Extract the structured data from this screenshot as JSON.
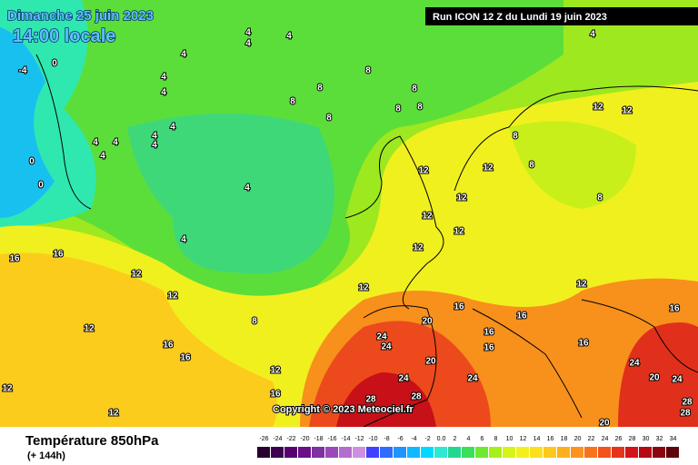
{
  "header": {
    "date": "Dimanche 25 juin 2023",
    "time": "14:00 locale",
    "run": "Run ICON 12 Z du Lundi 19 juin 2023"
  },
  "copyright": "Copyright © 2023 Meteociel.fr",
  "footer": {
    "title": "Température 850hPa",
    "lead": "(+ 144h)"
  },
  "contour_labels": [
    0,
    -4,
    0,
    0,
    4,
    4,
    4,
    4,
    4,
    4,
    4,
    4,
    4,
    4,
    4,
    4,
    4,
    4,
    4,
    8,
    8,
    8,
    8,
    8,
    8,
    8,
    8,
    8,
    8,
    8,
    12,
    12,
    12,
    12,
    12,
    12,
    12,
    12,
    12,
    12,
    12,
    12,
    12,
    12,
    12,
    12,
    16,
    16,
    16,
    16,
    16,
    16,
    16,
    16,
    16,
    16,
    16,
    20,
    20,
    20,
    20,
    24,
    24,
    24,
    24,
    24,
    24,
    28,
    28,
    28,
    28
  ],
  "legend": {
    "labels": [
      "-26",
      "-24",
      "-22",
      "-20",
      "-18",
      "-16",
      "-14",
      "-12",
      "-10",
      "-8",
      "-6",
      "-4",
      "-2",
      "0.0",
      "2",
      "4",
      "6",
      "8",
      "10",
      "12",
      "14",
      "16",
      "18",
      "20",
      "22",
      "24",
      "26",
      "28",
      "30",
      "32",
      "34"
    ],
    "colors": [
      "#2a0030",
      "#3c0050",
      "#55006e",
      "#6a0f87",
      "#7f2fa0",
      "#9a4ab8",
      "#b46ccf",
      "#cf8fe0",
      "#4040ff",
      "#2f6bff",
      "#1f93ff",
      "#10b8ff",
      "#00d8ff",
      "#2ee8d0",
      "#22d890",
      "#39e05a",
      "#70e830",
      "#a6f01a",
      "#d6f31a",
      "#f2f01c",
      "#fbe01c",
      "#fdc81c",
      "#fcb01c",
      "#fb941c",
      "#f8741c",
      "#f2541c",
      "#e6341c",
      "#d4141c",
      "#b40a14",
      "#8c0610",
      "#60040a"
    ]
  }
}
